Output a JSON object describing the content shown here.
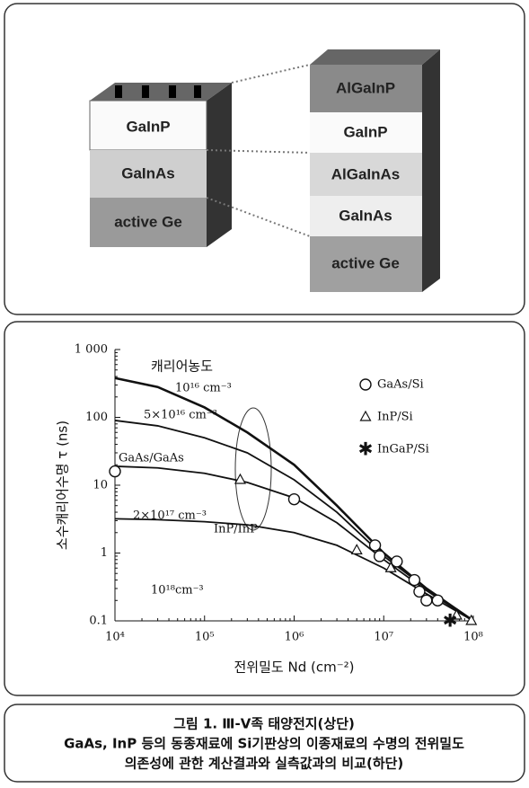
{
  "diagram": {
    "left_layers": [
      "GaInP",
      "GaInAs",
      "active Ge"
    ],
    "right_layers": [
      "AlGaInP",
      "GaInP",
      "AlGaInAs",
      "GaInAs",
      "active Ge"
    ]
  },
  "chart_data": {
    "type": "line",
    "xlabel": "전위밀도 Nd (cm⁻²)",
    "ylabel": "소수캐리어수명 τ (ns)",
    "log_x": true,
    "log_y": true,
    "legend": "upper right",
    "xlim": [
      10000,
      100000000
    ],
    "xticks": [
      {
        "value": 10000,
        "label": "10⁴"
      },
      {
        "value": 100000,
        "label": "10⁵"
      },
      {
        "value": 1000000,
        "label": "10⁶"
      },
      {
        "value": 10000000,
        "label": "10⁷"
      },
      {
        "value": 100000000,
        "label": "10⁸"
      }
    ],
    "ylim": [
      0.1,
      1000
    ],
    "yticks": [
      0.1,
      1,
      10,
      100,
      {
        "value": 1000,
        "label": "1 000"
      }
    ],
    "annotations": [
      "캐리어농도",
      "GaAs/GaAs",
      "InP/InP"
    ],
    "lines": [
      {
        "name": "10¹⁶ cm⁻³",
        "color": "#111",
        "width": 2.6,
        "x": [
          10000,
          30000,
          100000,
          300000,
          1000000,
          3000000,
          10000000,
          30000000,
          100000000
        ],
        "values": [
          380,
          280,
          140,
          60,
          20,
          5,
          1.0,
          0.3,
          0.1
        ]
      },
      {
        "name": "5×10¹⁶ cm⁻³",
        "color": "#111",
        "width": 1.8,
        "x": [
          10000,
          30000,
          100000,
          300000,
          1000000,
          3000000,
          10000000,
          30000000,
          100000000
        ],
        "values": [
          90,
          75,
          50,
          30,
          12,
          4,
          0.9,
          0.3,
          0.1
        ]
      },
      {
        "name": "2×10¹⁷ cm⁻³",
        "color": "#111",
        "width": 1.8,
        "x": [
          10000,
          30000,
          100000,
          300000,
          1000000,
          3000000,
          10000000,
          30000000,
          100000000
        ],
        "values": [
          19,
          18,
          15,
          11,
          6.5,
          2.8,
          0.8,
          0.28,
          0.1
        ]
      },
      {
        "name": "10¹⁸cm⁻³",
        "color": "#111",
        "width": 1.8,
        "x": [
          10000,
          30000,
          100000,
          300000,
          1000000,
          3000000,
          10000000,
          30000000,
          100000000
        ],
        "values": [
          3.2,
          3.1,
          2.9,
          2.6,
          2.0,
          1.3,
          0.6,
          0.25,
          0.1
        ]
      }
    ],
    "series": [
      {
        "name": "GaAs/Si",
        "marker": "circle",
        "color": "#111",
        "x": [
          10000,
          1000000,
          8000000,
          9000000,
          14000000,
          22000000,
          25000000,
          30000000,
          40000000
        ],
        "values": [
          16,
          6.2,
          1.3,
          0.9,
          0.75,
          0.4,
          0.27,
          0.2,
          0.2
        ]
      },
      {
        "name": "InP/Si",
        "marker": "triangle",
        "color": "#111",
        "x": [
          250000,
          5000000,
          12000000,
          65000000,
          95000000
        ],
        "values": [
          12,
          1.1,
          0.6,
          0.12,
          0.1
        ]
      },
      {
        "name": "InGaP/Si",
        "marker": "star",
        "color": "#111",
        "x": [
          55000000
        ],
        "values": [
          0.1
        ]
      }
    ]
  },
  "caption": [
    "그림 1. Ⅲ-Ⅴ족 태양전지(상단)",
    "GaAs, InP 등의 동종재료에 Si기판상의 이종재료의 수명의 전위밀도",
    "의존성에 관한 계산결과와 실측값과의 비교(하단)"
  ]
}
